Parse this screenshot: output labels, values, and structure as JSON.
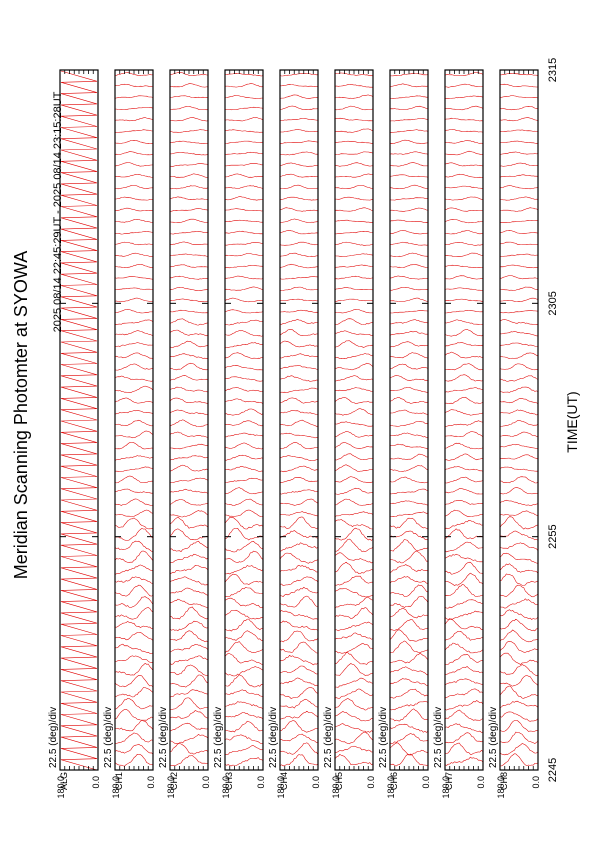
{
  "title": "Meridian Scanning Photomter at SYOWA",
  "time_range": "2025 08/14 22:45:29UT - 2025 08/14 23:15:28UT",
  "scale_label": "22.5 (deg)/div",
  "axis_top": "180.0",
  "axis_bottom": "0.0",
  "xlabel": "TIME(UT)",
  "colors": {
    "trace": "#e00000",
    "frame": "#000000",
    "background": "#ffffff"
  },
  "chart_data": {
    "type": "line",
    "title": "Meridian Scanning Photomter at SYOWA",
    "xlabel": "TIME(UT)",
    "x_ticks": [
      "2245",
      "2255",
      "2305",
      "2315"
    ],
    "x_range": [
      "22:45",
      "23:15"
    ],
    "ylim": [
      0.0,
      180.0
    ],
    "panels": [
      {
        "channel": "ALG",
        "scale": "22.5 (deg)/div",
        "ymax": 180.0,
        "ymin": 0.0,
        "trace_style": "sawtooth"
      },
      {
        "channel": "CH1",
        "scale": "22.5 (deg)/div",
        "ymax": 180.0,
        "ymin": 0.0,
        "trace_style": "stacked"
      },
      {
        "channel": "CH2",
        "scale": "22.5 (deg)/div",
        "ymax": 180.0,
        "ymin": 0.0,
        "trace_style": "stacked"
      },
      {
        "channel": "CH3",
        "scale": "22.5 (deg)/div",
        "ymax": 180.0,
        "ymin": 0.0,
        "trace_style": "stacked"
      },
      {
        "channel": "CH4",
        "scale": "22.5 (deg)/div",
        "ymax": 180.0,
        "ymin": 0.0,
        "trace_style": "stacked"
      },
      {
        "channel": "CH5",
        "scale": "22.5 (deg)/div",
        "ymax": 180.0,
        "ymin": 0.0,
        "trace_style": "stacked"
      },
      {
        "channel": "CH6",
        "scale": "22.5 (deg)/div",
        "ymax": 180.0,
        "ymin": 0.0,
        "trace_style": "stacked"
      },
      {
        "channel": "CH7",
        "scale": "22.5 (deg)/div",
        "ymax": 180.0,
        "ymin": 0.0,
        "trace_style": "stacked"
      },
      {
        "channel": "CH8",
        "scale": "22.5 (deg)/div",
        "ymax": 180.0,
        "ymin": 0.0,
        "trace_style": "stacked"
      }
    ]
  }
}
